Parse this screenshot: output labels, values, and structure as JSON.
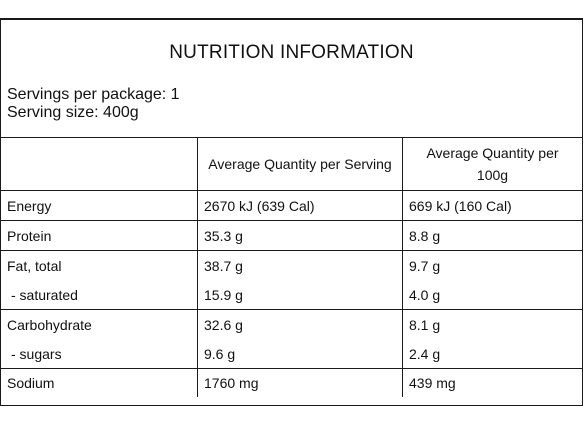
{
  "panel": {
    "title": "NUTRITION INFORMATION",
    "servings_per_package": "Servings per package: 1",
    "serving_size": "Serving size: 400g"
  },
  "table": {
    "headers": [
      "",
      "Average Quantity per Serving",
      "Average Quantity per 100g"
    ],
    "rows": [
      {
        "label": "Energy",
        "per_serving": "2670 kJ (639 Cal)",
        "per_100g": "669 kJ (160 Cal)"
      },
      {
        "label": "Protein",
        "per_serving": "35.3 g",
        "per_100g": "8.8 g"
      },
      {
        "label": "Fat, total",
        "per_serving": "38.7 g",
        "per_100g": "9.7 g"
      },
      {
        "label": "- saturated",
        "per_serving": "15.9 g",
        "per_100g": "4.0 g"
      },
      {
        "label": "Carbohydrate",
        "per_serving": "32.6 g",
        "per_100g": "8.1 g"
      },
      {
        "label": "- sugars",
        "per_serving": "9.6 g",
        "per_100g": "2.4 g"
      },
      {
        "label": "Sodium",
        "per_serving": "1760 mg",
        "per_100g": "439 mg"
      }
    ]
  }
}
